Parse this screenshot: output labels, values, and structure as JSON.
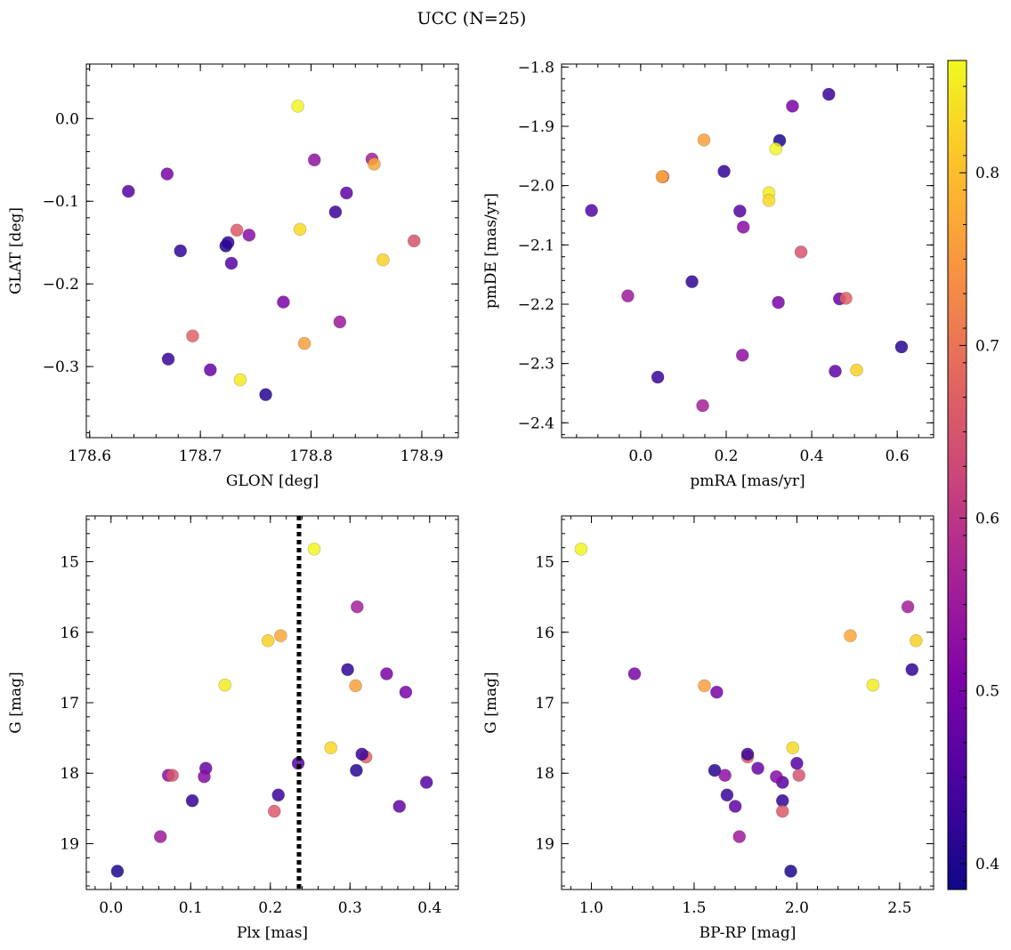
{
  "chart_data": {
    "title": "UCC (N=25)",
    "colorbar": {
      "range": [
        0.385,
        0.865
      ],
      "ticks": [
        0.4,
        0.5,
        0.6,
        0.7,
        0.8
      ],
      "tick_labels": [
        "0.4",
        "0.5",
        "0.6",
        "0.7",
        "0.8"
      ],
      "colormap": "plasma"
    },
    "stars": [
      {
        "glon": 178.635,
        "glat": -0.088,
        "pmra": -0.115,
        "pmde": -2.042,
        "plx": 0.396,
        "g": 18.13,
        "bprp": 1.93,
        "c": 0.46
      },
      {
        "glon": 178.67,
        "glat": -0.067,
        "pmra": 0.355,
        "pmde": -1.866,
        "plx": 0.37,
        "g": 16.85,
        "bprp": 1.61,
        "c": 0.5
      },
      {
        "glon": 178.682,
        "glat": -0.16,
        "pmra": 0.195,
        "pmde": -1.976,
        "plx": 0.297,
        "g": 16.53,
        "bprp": 2.56,
        "c": 0.42
      },
      {
        "glon": 178.671,
        "glat": -0.291,
        "pmra": 0.04,
        "pmde": -2.323,
        "plx": 0.21,
        "g": 18.31,
        "bprp": 1.66,
        "c": 0.43
      },
      {
        "glon": 178.723,
        "glat": -0.154,
        "pmra": 0.325,
        "pmde": -1.924,
        "plx": 0.008,
        "g": 19.39,
        "bprp": 1.97,
        "c": 0.4
      },
      {
        "glon": 178.725,
        "glat": -0.15,
        "pmra": 0.12,
        "pmde": -2.162,
        "plx": 0.102,
        "g": 18.39,
        "bprp": 1.93,
        "c": 0.42
      },
      {
        "glon": 178.728,
        "glat": -0.175,
        "pmra": 0.232,
        "pmde": -2.043,
        "plx": 0.235,
        "g": 17.86,
        "bprp": 2.0,
        "c": 0.46
      },
      {
        "glon": 178.709,
        "glat": -0.304,
        "pmra": 0.465,
        "pmde": -2.191,
        "plx": 0.119,
        "g": 17.93,
        "bprp": 1.81,
        "c": 0.48
      },
      {
        "glon": 178.733,
        "glat": -0.135,
        "pmra": 0.052,
        "pmde": -1.985,
        "plx": 0.205,
        "g": 18.54,
        "bprp": 1.93,
        "c": 0.66
      },
      {
        "glon": 178.744,
        "glat": -0.141,
        "pmra": 0.24,
        "pmde": -2.07,
        "plx": 0.117,
        "g": 18.05,
        "bprp": 1.9,
        "c": 0.52
      },
      {
        "glon": 178.693,
        "glat": -0.263,
        "pmra": 0.48,
        "pmde": -2.19,
        "plx": 0.32,
        "g": 17.77,
        "bprp": 1.76,
        "c": 0.67
      },
      {
        "glon": 178.736,
        "glat": -0.316,
        "pmra": 0.3,
        "pmde": -2.012,
        "plx": 0.143,
        "g": 16.75,
        "bprp": 2.37,
        "c": 0.85
      },
      {
        "glon": 178.759,
        "glat": -0.334,
        "pmra": 0.61,
        "pmde": -2.272,
        "plx": 0.308,
        "g": 17.96,
        "bprp": 1.6,
        "c": 0.41
      },
      {
        "glon": 178.775,
        "glat": -0.222,
        "pmra": 0.322,
        "pmde": -2.197,
        "plx": 0.346,
        "g": 16.59,
        "bprp": 1.21,
        "c": 0.5
      },
      {
        "glon": 178.788,
        "glat": 0.015,
        "pmra": 0.316,
        "pmde": -1.938,
        "plx": 0.255,
        "g": 14.82,
        "bprp": 0.95,
        "c": 0.86
      },
      {
        "glon": 178.79,
        "glat": -0.134,
        "pmra": 0.3,
        "pmde": -2.025,
        "plx": 0.276,
        "g": 17.64,
        "bprp": 1.98,
        "c": 0.83
      },
      {
        "glon": 178.794,
        "glat": -0.272,
        "pmra": 0.148,
        "pmde": -1.923,
        "plx": 0.307,
        "g": 16.76,
        "bprp": 1.55,
        "c": 0.76
      },
      {
        "glon": 178.803,
        "glat": -0.05,
        "pmra": 0.238,
        "pmde": -2.286,
        "plx": 0.072,
        "g": 18.03,
        "bprp": 1.65,
        "c": 0.53
      },
      {
        "glon": 178.822,
        "glat": -0.113,
        "pmra": 0.44,
        "pmde": -1.846,
        "plx": 0.315,
        "g": 17.73,
        "bprp": 1.76,
        "c": 0.43
      },
      {
        "glon": 178.826,
        "glat": -0.246,
        "pmra": -0.03,
        "pmde": -2.186,
        "plx": 0.062,
        "g": 18.9,
        "bprp": 1.72,
        "c": 0.55
      },
      {
        "glon": 178.832,
        "glat": -0.09,
        "pmra": 0.455,
        "pmde": -2.313,
        "plx": 0.362,
        "g": 18.47,
        "bprp": 1.7,
        "c": 0.47
      },
      {
        "glon": 178.855,
        "glat": -0.049,
        "pmra": 0.145,
        "pmde": -2.371,
        "plx": 0.309,
        "g": 15.64,
        "bprp": 2.54,
        "c": 0.56
      },
      {
        "glon": 178.857,
        "glat": -0.055,
        "pmra": 0.05,
        "pmde": -1.985,
        "plx": 0.213,
        "g": 16.05,
        "bprp": 2.26,
        "c": 0.77
      },
      {
        "glon": 178.865,
        "glat": -0.171,
        "pmra": 0.505,
        "pmde": -2.311,
        "plx": 0.197,
        "g": 16.12,
        "bprp": 2.58,
        "c": 0.82
      },
      {
        "glon": 178.893,
        "glat": -0.148,
        "pmra": 0.375,
        "pmde": -2.112,
        "plx": 0.077,
        "g": 18.03,
        "bprp": 2.01,
        "c": 0.65
      }
    ],
    "panels": [
      {
        "id": "glon-glat",
        "type": "scatter",
        "x": "glon",
        "y": "glat",
        "xlabel": "GLON [deg]",
        "ylabel": "GLAT [deg]",
        "xlim": [
          178.597,
          178.933
        ],
        "ylim": [
          -0.386,
          0.066
        ],
        "y_inverted": false,
        "xticks": [
          178.6,
          178.7,
          178.8,
          178.9
        ],
        "xtick_labels": [
          "178.6",
          "178.7",
          "178.8",
          "178.9"
        ],
        "yticks": [
          0.0,
          -0.1,
          -0.2,
          -0.3
        ],
        "ytick_labels": [
          "0.0",
          "−0.1",
          "−0.2",
          "−0.3"
        ],
        "xminor": 0.02,
        "yminor": 0.02
      },
      {
        "id": "pm",
        "type": "scatter",
        "x": "pmra",
        "y": "pmde",
        "xlabel": "pmRA [mas/yr]",
        "ylabel": "pmDE [mas/yr]",
        "xlim": [
          -0.185,
          0.685
        ],
        "ylim": [
          -2.425,
          -1.795
        ],
        "y_inverted": false,
        "xticks": [
          0.0,
          0.2,
          0.4,
          0.6
        ],
        "xtick_labels": [
          "0.0",
          "0.2",
          "0.4",
          "0.6"
        ],
        "yticks": [
          -1.8,
          -1.9,
          -2.0,
          -2.1,
          -2.2,
          -2.3,
          -2.4
        ],
        "ytick_labels": [
          "−1.8",
          "−1.9",
          "−2.0",
          "−2.1",
          "−2.2",
          "−2.3",
          "−2.4"
        ],
        "xminor": 0.05,
        "yminor": 0.02
      },
      {
        "id": "plx-g",
        "type": "scatter",
        "x": "plx",
        "y": "g",
        "xlabel": "Plx [mas]",
        "ylabel": "G [mag]",
        "xlim": [
          -0.031,
          0.436
        ],
        "ylim": [
          14.35,
          19.65
        ],
        "y_inverted": true,
        "xticks": [
          0.0,
          0.1,
          0.2,
          0.3,
          0.4
        ],
        "xtick_labels": [
          "0.0",
          "0.1",
          "0.2",
          "0.3",
          "0.4"
        ],
        "yticks": [
          15,
          16,
          17,
          18,
          19
        ],
        "ytick_labels": [
          "15",
          "16",
          "17",
          "18",
          "19"
        ],
        "xminor": 0.02,
        "yminor": 0.2,
        "vline": {
          "x": 0.236,
          "style": "dotted"
        }
      },
      {
        "id": "cmd",
        "type": "scatter",
        "x": "bprp",
        "y": "g",
        "xlabel": "BP-RP [mag]",
        "ylabel": "G [mag]",
        "xlim": [
          0.855,
          2.665
        ],
        "ylim": [
          14.35,
          19.65
        ],
        "y_inverted": true,
        "xticks": [
          1.0,
          1.5,
          2.0,
          2.5
        ],
        "xtick_labels": [
          "1.0",
          "1.5",
          "2.0",
          "2.5"
        ],
        "yticks": [
          15,
          16,
          17,
          18,
          19
        ],
        "ytick_labels": [
          "15",
          "16",
          "17",
          "18",
          "19"
        ],
        "xminor": 0.1,
        "yminor": 0.2
      }
    ]
  }
}
